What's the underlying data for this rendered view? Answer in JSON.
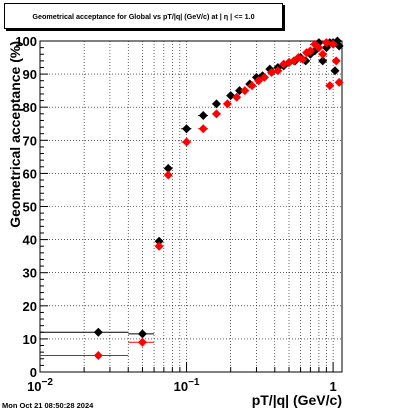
{
  "footer": "Mon Oct 21 08:50:28 2024",
  "chart_data": {
    "type": "scatter",
    "title": "Geometrical acceptance for Global vs pT/|q| (GeV/c) at |  η | <= 1.0",
    "xlabel": "pT/|q| (GeV/c)",
    "ylabel": "Geometrical acceptance (%)",
    "xscale": "log",
    "xlim": [
      0.01,
      1.15
    ],
    "ylim": [
      0,
      100
    ],
    "x_ticks": [
      0.01,
      0.1,
      1
    ],
    "x_tick_labels": [
      "10",
      "10",
      "1"
    ],
    "x_tick_exponents": [
      "−2",
      "−1",
      ""
    ],
    "y_ticks": [
      0,
      10,
      20,
      30,
      40,
      50,
      60,
      70,
      80,
      90,
      100
    ],
    "grid": true,
    "series": [
      {
        "color": "#000000",
        "marker": "diamond",
        "points": [
          [
            0.025,
            12,
            0.015
          ],
          [
            0.05,
            11.5,
            0.01
          ],
          [
            0.065,
            39.5,
            0.003
          ],
          [
            0.075,
            61.5,
            0.004
          ],
          [
            0.1,
            73.5,
            0.008
          ],
          [
            0.13,
            77.5,
            0.01
          ],
          [
            0.16,
            81,
            0.01
          ],
          [
            0.2,
            83.5,
            0.012
          ],
          [
            0.23,
            85,
            0.01
          ],
          [
            0.27,
            87,
            0.012
          ],
          [
            0.3,
            89,
            0.012
          ],
          [
            0.33,
            89.5,
            0.01
          ],
          [
            0.37,
            91.5,
            0.012
          ],
          [
            0.42,
            92,
            0.012
          ],
          [
            0.46,
            92.5,
            0.012
          ],
          [
            0.5,
            93.5,
            0.012
          ],
          [
            0.55,
            94,
            0.012
          ],
          [
            0.6,
            95,
            0.012
          ],
          [
            0.65,
            94,
            0.012
          ],
          [
            0.7,
            96,
            0.012
          ],
          [
            0.75,
            97,
            0.012
          ],
          [
            0.8,
            99.5,
            0.012
          ],
          [
            0.85,
            94,
            0.012
          ],
          [
            0.9,
            98,
            0.012
          ],
          [
            0.95,
            99.5,
            0.012
          ],
          [
            1.0,
            99.5,
            0.012
          ],
          [
            1.03,
            91,
            0.012
          ],
          [
            1.07,
            100,
            0.012
          ],
          [
            1.1,
            98.5,
            0.012
          ]
        ]
      },
      {
        "color": "#ff0000",
        "marker": "diamond",
        "points": [
          [
            0.025,
            5,
            0.015
          ],
          [
            0.05,
            9,
            0.01
          ],
          [
            0.065,
            38,
            0.003
          ],
          [
            0.075,
            59.5,
            0.004
          ],
          [
            0.1,
            69.5,
            0.008
          ],
          [
            0.13,
            73.5,
            0.01
          ],
          [
            0.16,
            78,
            0.01
          ],
          [
            0.19,
            81,
            0.01
          ],
          [
            0.22,
            83,
            0.01
          ],
          [
            0.25,
            85,
            0.01
          ],
          [
            0.28,
            86.5,
            0.012
          ],
          [
            0.31,
            88,
            0.012
          ],
          [
            0.34,
            89,
            0.012
          ],
          [
            0.38,
            90.5,
            0.012
          ],
          [
            0.42,
            91,
            0.012
          ],
          [
            0.46,
            93,
            0.012
          ],
          [
            0.5,
            93.5,
            0.012
          ],
          [
            0.54,
            94,
            0.012
          ],
          [
            0.58,
            95,
            0.012
          ],
          [
            0.62,
            94.5,
            0.012
          ],
          [
            0.66,
            96.5,
            0.012
          ],
          [
            0.7,
            97,
            0.012
          ],
          [
            0.75,
            99,
            0.012
          ],
          [
            0.8,
            98,
            0.012
          ],
          [
            0.85,
            96,
            0.012
          ],
          [
            0.9,
            99.5,
            0.012
          ],
          [
            0.95,
            86.5,
            0.012
          ],
          [
            1.0,
            99,
            0.012
          ],
          [
            1.05,
            94,
            0.012
          ],
          [
            1.1,
            87.5,
            0.012
          ]
        ]
      }
    ]
  }
}
